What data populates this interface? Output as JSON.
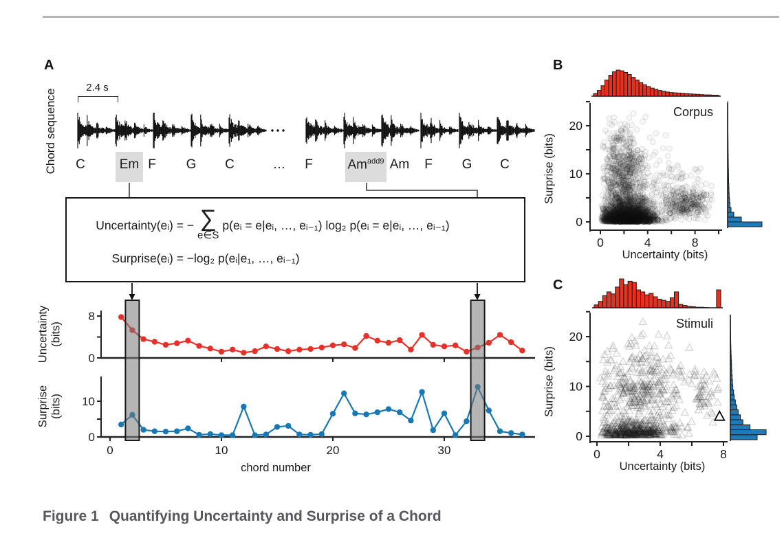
{
  "caption": {
    "label": "Figure 1",
    "title": "Quantifying Uncertainty and Surprise of a Chord"
  },
  "panel_a": {
    "label": "A",
    "sequence_label": "Chord sequence",
    "duration_label": "2.4 s",
    "chords": [
      {
        "label": "C"
      },
      {
        "label": "Em",
        "highlight": true
      },
      {
        "label": "F"
      },
      {
        "label": "G"
      },
      {
        "label": "C"
      },
      {
        "label": "…"
      },
      {
        "label": "F"
      },
      {
        "label": "Am",
        "sup": "add9",
        "highlight": true
      },
      {
        "label": "Am"
      },
      {
        "label": "F"
      },
      {
        "label": "G"
      },
      {
        "label": "C"
      }
    ],
    "waveform": {
      "n_bursts": 11,
      "gap_label": "…"
    },
    "equations": {
      "uncertainty_lhs": "Uncertainty(eᵢ) = −",
      "sum_symbol": "∑",
      "sum_subscript": "e∈S",
      "uncertainty_rhs": "p(eᵢ = e|eᵢ, …, eᵢ₋₁) log₂ p(eᵢ = e|eᵢ, …, eᵢ₋₁)",
      "surprise_lhs": "Surprise(eᵢ) = −",
      "surprise_rhs": "log₂ p(eᵢ|e₁, …, eᵢ₋₁)"
    }
  },
  "panel_b": {
    "label": "B"
  },
  "panel_c": {
    "label": "C"
  },
  "colors": {
    "red": "#e8301f",
    "blue": "#1e7ab8",
    "line_red": "#e73128",
    "line_blue": "#1878b4",
    "band_fill": "rgba(120,120,120,0.55)",
    "band_stroke": "#1a1a1a",
    "waveform": "#111111",
    "highlight_box": "#dcdcdc",
    "caption_gray": "#56575a"
  },
  "chart_data": [
    {
      "id": "uncertainty_line",
      "type": "line",
      "series": "Uncertainty",
      "ylabel_line1": "Uncertainty",
      "ylabel_line2": "(bits)",
      "x_start": 1,
      "values": [
        7.8,
        5.3,
        3.6,
        3.1,
        2.5,
        2.8,
        3.3,
        2.3,
        1.8,
        1.2,
        1.6,
        1.0,
        1.3,
        2.2,
        1.7,
        1.3,
        1.6,
        1.7,
        2.0,
        2.4,
        2.6,
        1.9,
        4.2,
        3.3,
        2.9,
        3.4,
        1.6,
        4.4,
        2.5,
        2.2,
        2.4,
        1.2,
        2.0,
        2.9,
        4.4,
        3.0,
        1.4
      ],
      "yticks": [
        0,
        4,
        8
      ],
      "ytick_labels": [
        0,
        8
      ],
      "ylim": [
        0,
        9.5
      ],
      "xticks": [
        10,
        20,
        30
      ],
      "highlight_chords": [
        2,
        33
      ]
    },
    {
      "id": "surprise_line",
      "type": "line",
      "series": "Surprise",
      "ylabel_line1": "Surprise",
      "ylabel_line2": "(bits)",
      "xlabel": "chord number",
      "x_start": 1,
      "values": [
        3.5,
        6.2,
        2.0,
        1.6,
        1.5,
        1.6,
        2.4,
        0.6,
        0.8,
        0.5,
        0.5,
        8.5,
        0.5,
        0.7,
        2.8,
        3.1,
        0.7,
        0.6,
        0.8,
        6.5,
        12.2,
        6.6,
        6.3,
        6.9,
        7.8,
        6.9,
        4.6,
        12.6,
        1.9,
        6.6,
        0.5,
        4.4,
        14.0,
        7.4,
        1.6,
        1.1,
        0.7
      ],
      "yticks": [
        0,
        5,
        10
      ],
      "ytick_labels": [
        0,
        10
      ],
      "ylim": [
        0,
        15.5
      ],
      "xticks": [
        0,
        10,
        20,
        30
      ],
      "xtick_labels": [
        0,
        10,
        20,
        30
      ],
      "highlight_chords": [
        2,
        33
      ]
    },
    {
      "id": "corpus_scatter",
      "type": "scatter",
      "title": "Corpus",
      "marker": "circle",
      "xlabel": "Uncertainty (bits)",
      "ylabel": "Surprise (bits)",
      "xticks": [
        0,
        2,
        4,
        6,
        8,
        10
      ],
      "xtick_labels": [
        0,
        4,
        8
      ],
      "yticks": [
        0,
        5,
        10,
        15,
        20,
        25
      ],
      "ytick_labels": [
        0,
        10,
        20
      ],
      "xlim": [
        0,
        10
      ],
      "ylim": [
        0,
        25
      ],
      "seed": 11,
      "clusters": [
        {
          "n": 2300,
          "x": {
            "dist": "normal",
            "mean": 2.3,
            "sd": 1.15,
            "min": 0.1,
            "max": 6.8
          },
          "y": {
            "dist": "exp",
            "mean": 1.3,
            "min": 0.02,
            "max": 5.5
          }
        },
        {
          "n": 750,
          "x": {
            "dist": "normal",
            "mean": 1.9,
            "sd": 0.95,
            "min": 0.15,
            "max": 5.0
          },
          "y": {
            "dist": "normal",
            "mean": 9.0,
            "sd": 5.5,
            "min": 0.2,
            "max": 24.3
          }
        },
        {
          "n": 280,
          "x": {
            "dist": "normal",
            "mean": 7.3,
            "sd": 1.05,
            "min": 5.2,
            "max": 9.6
          },
          "y": {
            "dist": "normal",
            "mean": 3.6,
            "sd": 1.6,
            "min": 0.3,
            "max": 11
          }
        },
        {
          "n": 170,
          "x": {
            "dist": "normal",
            "mean": 4.8,
            "sd": 2.0,
            "min": 0.3,
            "max": 9.5
          },
          "y": {
            "dist": "normal",
            "mean": 6.5,
            "sd": 3.8,
            "min": 0.2,
            "max": 19
          }
        }
      ],
      "marginal_top": {
        "variable": "uncertainty",
        "color": "#e8301f",
        "range": [
          0,
          10
        ],
        "heights": [
          0.1,
          0.22,
          0.4,
          0.62,
          0.8,
          0.94,
          1.0,
          0.97,
          0.91,
          0.83,
          0.72,
          0.62,
          0.52,
          0.44,
          0.37,
          0.31,
          0.26,
          0.22,
          0.19,
          0.16,
          0.14,
          0.13,
          0.12,
          0.11,
          0.1,
          0.09,
          0.08,
          0.07,
          0.06,
          0.05,
          0.05,
          0.04,
          0.04
        ]
      },
      "marginal_right": {
        "variable": "surprise",
        "color": "#1e7ab8",
        "range": [
          0,
          26
        ],
        "heights": [
          1.0,
          0.4,
          0.18,
          0.1,
          0.07,
          0.055,
          0.045,
          0.04,
          0.035,
          0.03,
          0.028,
          0.025,
          0.022,
          0.02,
          0.018,
          0.016,
          0.014,
          0.013,
          0.012,
          0.011,
          0.01,
          0.009,
          0.008,
          0.007,
          0.006,
          0.005
        ]
      }
    },
    {
      "id": "stimuli_scatter",
      "type": "scatter",
      "title": "Stimuli",
      "marker": "triangle",
      "xlabel": "Uncertainty (bits)",
      "ylabel": "Surprise (bits)",
      "xticks": [
        0,
        2,
        4,
        6,
        8
      ],
      "xtick_labels": [
        0,
        4,
        8
      ],
      "yticks": [
        0,
        5,
        10,
        15,
        20,
        25
      ],
      "ytick_labels": [
        0,
        10,
        20
      ],
      "xlim": [
        0,
        8
      ],
      "ylim": [
        0,
        25
      ],
      "seed": 23,
      "highlight_point": {
        "x": 7.75,
        "y": 3.9
      },
      "clusters": [
        {
          "n": 380,
          "x": {
            "dist": "normal",
            "mean": 2.2,
            "sd": 1.25,
            "min": 0.2,
            "max": 6.0
          },
          "y": {
            "dist": "exp",
            "mean": 0.9,
            "min": 0.1,
            "max": 3.5
          }
        },
        {
          "n": 360,
          "x": {
            "dist": "normal",
            "mean": 2.7,
            "sd": 1.45,
            "min": 0.2,
            "max": 7.3
          },
          "y": {
            "dist": "normal",
            "mean": 8.5,
            "sd": 4.6,
            "min": 0.4,
            "max": 23
          }
        },
        {
          "n": 45,
          "x": {
            "dist": "normal",
            "mean": 6.9,
            "sd": 0.7,
            "min": 5.8,
            "max": 7.9
          },
          "y": {
            "dist": "normal",
            "mean": 8.0,
            "sd": 2.6,
            "min": 2,
            "max": 13
          }
        }
      ],
      "marginal_top": {
        "variable": "uncertainty",
        "color": "#e8301f",
        "range": [
          0,
          8
        ],
        "heights": [
          0.1,
          0.22,
          0.42,
          0.55,
          0.48,
          0.72,
          1.0,
          0.8,
          0.92,
          0.88,
          0.62,
          0.55,
          0.45,
          0.5,
          0.38,
          0.3,
          0.26,
          0.22,
          0.35,
          0.55,
          0.12,
          0.08,
          0.05,
          0.04,
          0.02,
          0.02,
          0.01,
          0.0,
          0.0,
          0.62
        ]
      },
      "marginal_right": {
        "variable": "surprise",
        "color": "#1e7ab8",
        "range": [
          0,
          24
        ],
        "heights": [
          0.75,
          1.0,
          0.55,
          0.35,
          0.28,
          0.22,
          0.18,
          0.14,
          0.11,
          0.09,
          0.07,
          0.06,
          0.05,
          0.04,
          0.035,
          0.03,
          0.025,
          0.02,
          0.015,
          0.012,
          0.01,
          0.008,
          0.006,
          0.005
        ]
      }
    }
  ]
}
